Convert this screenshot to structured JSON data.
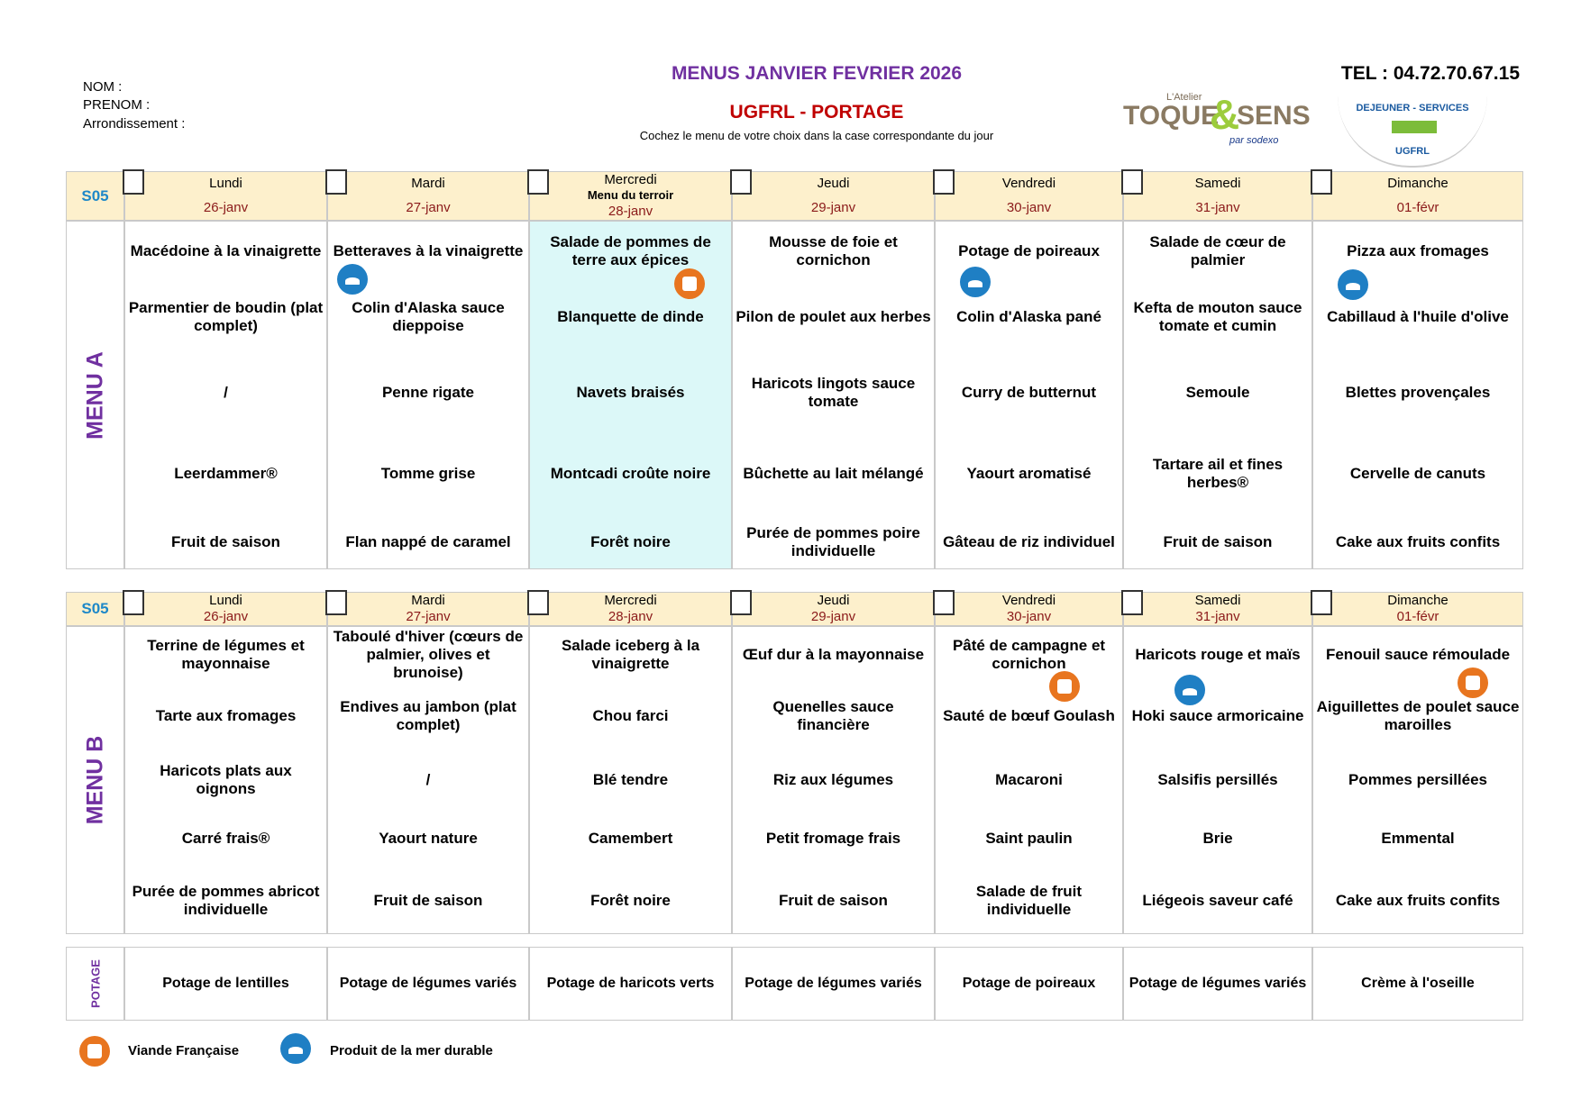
{
  "header": {
    "fields": [
      "NOM :",
      "PRENOM :",
      "Arrondissement :"
    ],
    "title": "MENUS JANVIER FEVRIER 2026",
    "subtitle": "UGFRL - PORTAGE",
    "instruction": "Cochez le menu de votre choix dans la case correspondante du jour",
    "phone": "TEL : 04.72.70.67.15",
    "logo_toque": {
      "small": "L'Atelier",
      "left": "TOQUE",
      "amp": "&",
      "right": "SENS",
      "by": "par sodexo"
    },
    "logo_ugfrl": {
      "top": "DEJEUNER - SERVICES",
      "bottom": "UGFRL"
    }
  },
  "menus": [
    {
      "label": "MENU A",
      "week": "S05",
      "days": [
        {
          "day": "Lundi",
          "date": "26-janv"
        },
        {
          "day": "Mardi",
          "date": "27-janv"
        },
        {
          "day": "Mercredi",
          "note": "Menu du terroir",
          "date": "28-janv"
        },
        {
          "day": "Jeudi",
          "date": "29-janv"
        },
        {
          "day": "Vendredi",
          "date": "30-janv"
        },
        {
          "day": "Samedi",
          "date": "31-janv"
        },
        {
          "day": "Dimanche",
          "date": "01-févr"
        }
      ],
      "rows": [
        [
          "Macédoine à la vinaigrette",
          "Betteraves à la vinaigrette",
          "Salade de pommes de terre aux épices",
          "Mousse de foie et cornichon",
          "Potage de poireaux",
          "Salade de cœur de palmier",
          "Pizza aux fromages"
        ],
        [
          "Parmentier de boudin (plat complet)",
          "Colin d'Alaska sauce dieppoise",
          "Blanquette de dinde",
          "Pilon de poulet aux herbes",
          "Colin d'Alaska pané",
          "Kefta de mouton sauce tomate et cumin",
          "Cabillaud à l'huile d'olive"
        ],
        [
          "/",
          "Penne rigate",
          "Navets braisés",
          "Haricots lingots sauce tomate",
          "Curry de butternut",
          "Semoule",
          "Blettes provençales"
        ],
        [
          "Leerdammer®",
          "Tomme grise",
          "Montcadi croûte noire",
          "Bûchette au lait mélangé",
          "Yaourt aromatisé",
          "Tartare ail et fines herbes®",
          "Cervelle de canuts"
        ],
        [
          "Fruit de saison",
          "Flan nappé de caramel",
          "Forêt noire",
          "Purée de pommes poire individuelle",
          "Gâteau de riz individuel",
          "Fruit de saison",
          "Cake aux fruits confits"
        ]
      ]
    },
    {
      "label": "MENU B",
      "week": "S05",
      "days": [
        {
          "day": "Lundi",
          "date": "26-janv"
        },
        {
          "day": "Mardi",
          "date": "27-janv"
        },
        {
          "day": "Mercredi",
          "date": "28-janv"
        },
        {
          "day": "Jeudi",
          "date": "29-janv"
        },
        {
          "day": "Vendredi",
          "date": "30-janv"
        },
        {
          "day": "Samedi",
          "date": "31-janv"
        },
        {
          "day": "Dimanche",
          "date": "01-févr"
        }
      ],
      "rows": [
        [
          "Terrine de légumes et mayonnaise",
          "Taboulé d'hiver (cœurs de palmier, olives et brunoise)",
          "Salade iceberg à la vinaigrette",
          "Œuf dur à la mayonnaise",
          "Pâté de campagne et cornichon",
          "Haricots rouge et maïs",
          "Fenouil sauce rémoulade"
        ],
        [
          "Tarte aux fromages",
          "Endives au jambon (plat complet)",
          "Chou farci",
          "Quenelles sauce financière",
          "Sauté de bœuf Goulash",
          "Hoki sauce armoricaine",
          "Aiguillettes de poulet sauce maroilles"
        ],
        [
          "Haricots plats aux oignons",
          "/",
          "Blé tendre",
          "Riz aux légumes",
          "Macaroni",
          "Salsifis persillés",
          "Pommes persillées"
        ],
        [
          "Carré frais®",
          "Yaourt nature",
          "Camembert",
          "Petit fromage frais",
          "Saint paulin",
          "Brie",
          "Emmental"
        ],
        [
          "Purée de pommes abricot individuelle",
          "Fruit de saison",
          "Forêt noire",
          "Fruit de saison",
          "Salade de fruit individuelle",
          "Liégeois saveur café",
          "Cake aux fruits confits"
        ]
      ]
    }
  ],
  "potage": {
    "label": "POTAGE",
    "items": [
      "Potage de lentilles",
      "Potage de légumes variés",
      "Potage de haricots verts",
      "Potage de légumes variés",
      "Potage de poireaux",
      "Potage de légumes variés",
      "Crème à l'oseille"
    ]
  },
  "legend": [
    "Viande Française",
    "Produit de la mer durable"
  ]
}
